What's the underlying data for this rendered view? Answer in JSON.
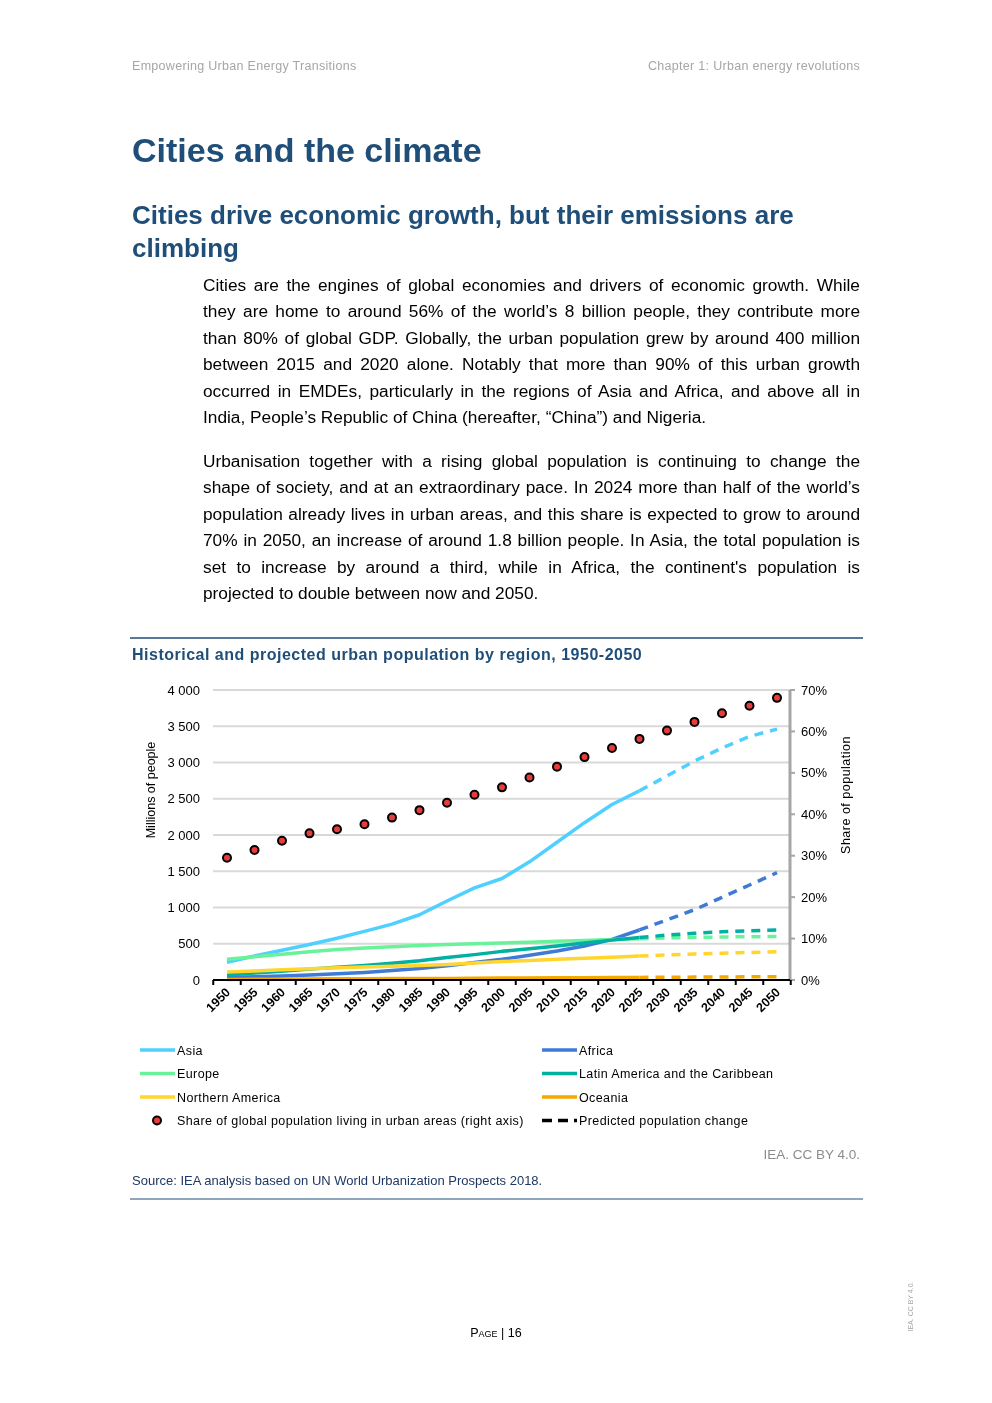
{
  "chart_data": {
    "type": "line",
    "title": "Historical and projected urban population by region, 1950-2050",
    "ylabel": "Millions of people",
    "y2label": "Share of population",
    "categories": [
      "1950",
      "1955",
      "1960",
      "1965",
      "1970",
      "1975",
      "1980",
      "1985",
      "1990",
      "1995",
      "2000",
      "2005",
      "2010",
      "2015",
      "2020",
      "2025",
      "2030",
      "2035",
      "2040",
      "2045",
      "2050"
    ],
    "series": [
      {
        "name": "Asia",
        "color": "#4fd0ff",
        "values": [
          245,
          330,
          410,
          490,
          575,
          670,
          770,
          900,
          1090,
          1270,
          1400,
          1630,
          1900,
          2170,
          2420,
          2610,
          null,
          null,
          null,
          null,
          null
        ]
      },
      {
        "name": "Africa",
        "color": "#3f7ad6",
        "values": [
          33,
          45,
          55,
          70,
          85,
          105,
          130,
          160,
          195,
          240,
          285,
          340,
          400,
          470,
          560,
          690,
          null,
          null,
          null,
          null,
          null
        ]
      },
      {
        "name": "Europe",
        "color": "#6af29a",
        "values": [
          285,
          320,
          355,
          390,
          420,
          440,
          460,
          475,
          490,
          500,
          510,
          520,
          535,
          545,
          560,
          570,
          null,
          null,
          null,
          null,
          null
        ]
      },
      {
        "name": "Latin America and the Caribbean",
        "color": "#00b0a0",
        "values": [
          70,
          95,
          120,
          150,
          175,
          200,
          230,
          265,
          310,
          350,
          395,
          430,
          470,
          510,
          550,
          585,
          null,
          null,
          null,
          null,
          null
        ]
      },
      {
        "name": "Northern America",
        "color": "#ffd52e",
        "values": [
          110,
          125,
          140,
          155,
          170,
          180,
          190,
          200,
          215,
          235,
          255,
          270,
          285,
          300,
          315,
          330,
          null,
          null,
          null,
          null,
          null
        ]
      },
      {
        "name": "Oceania",
        "color": "#f2a900",
        "values": [
          8,
          10,
          12,
          14,
          16,
          18,
          20,
          21,
          22,
          24,
          26,
          28,
          30,
          32,
          34,
          36,
          null,
          null,
          null,
          null,
          null
        ]
      },
      {
        "name": "Share of global population living in urban areas (right axis)",
        "type": "scatter",
        "axis": "y2",
        "marker": "circle",
        "color": "#e83c3c",
        "values": [
          29.5,
          31.4,
          33.6,
          35.4,
          36.4,
          37.6,
          39.2,
          41.0,
          42.8,
          44.7,
          46.5,
          48.9,
          51.5,
          53.8,
          56.0,
          58.2,
          60.2,
          62.3,
          64.4,
          66.2,
          68.1
        ]
      },
      {
        "color": "#4fd0ff",
        "line_style": "dashed",
        "values": [
          null,
          null,
          null,
          null,
          null,
          null,
          null,
          null,
          null,
          null,
          null,
          null,
          null,
          null,
          null,
          2610,
          2815,
          3020,
          3200,
          3360,
          3460
        ]
      },
      {
        "color": "#3f7ad6",
        "line_style": "dashed",
        "values": [
          null,
          null,
          null,
          null,
          null,
          null,
          null,
          null,
          null,
          null,
          null,
          null,
          null,
          null,
          null,
          690,
          830,
          970,
          1140,
          1310,
          1480
        ]
      },
      {
        "color": "#6af29a",
        "line_style": "dashed",
        "values": [
          null,
          null,
          null,
          null,
          null,
          null,
          null,
          null,
          null,
          null,
          null,
          null,
          null,
          null,
          null,
          570,
          580,
          588,
          593,
          597,
          600
        ]
      },
      {
        "color": "#00b0a0",
        "line_style": "dashed",
        "values": [
          null,
          null,
          null,
          null,
          null,
          null,
          null,
          null,
          null,
          null,
          null,
          null,
          null,
          null,
          null,
          585,
          620,
          645,
          665,
          680,
          690
        ]
      },
      {
        "color": "#ffd52e",
        "line_style": "dashed",
        "values": [
          null,
          null,
          null,
          null,
          null,
          null,
          null,
          null,
          null,
          null,
          null,
          null,
          null,
          null,
          null,
          330,
          345,
          360,
          370,
          380,
          390
        ]
      },
      {
        "color": "#f2a900",
        "line_style": "dashed",
        "values": [
          null,
          null,
          null,
          null,
          null,
          null,
          null,
          null,
          null,
          null,
          null,
          null,
          null,
          null,
          null,
          36,
          38,
          40,
          42,
          44,
          46
        ]
      }
    ],
    "ylim": [
      0,
      4000
    ],
    "yticks": [
      0,
      500,
      {
        "value": 1000,
        "label": "1 000"
      },
      {
        "value": 1500,
        "label": "1 500"
      },
      {
        "value": 2000,
        "label": "2 000"
      },
      {
        "value": 2500,
        "label": "2 500"
      },
      {
        "value": 3000,
        "label": "3 000"
      },
      {
        "value": 3500,
        "label": "3 500"
      },
      {
        "value": 4000,
        "label": "4 000"
      }
    ],
    "y2lim": [
      0,
      70
    ],
    "y2ticks": [
      {
        "value": 0,
        "label": "0%"
      },
      {
        "value": 10,
        "label": "10%"
      },
      {
        "value": 20,
        "label": "20%"
      },
      {
        "value": 30,
        "label": "30%"
      },
      {
        "value": 40,
        "label": "40%"
      },
      {
        "value": 50,
        "label": "50%"
      },
      {
        "value": 60,
        "label": "60%"
      },
      {
        "value": 70,
        "label": "70%"
      }
    ],
    "grid": "y",
    "legend": "bottom",
    "annotations": [
      "Empowering Urban Energy Transitions",
      "Chapter 1: Urban energy revolutions",
      "Cities and the climate",
      "Cities drive economic growth, but their emissions are climbing",
      "Cities are the engines of global economies and drivers of economic growth. While they are home to around 56% of the world’s 8 billion people, they contribute more than 80% of global GDP. Globally, the urban population grew by around 400 million between 2015 and 2020 alone. Notably that more than 90% of this urban growth occurred in EMDEs, particularly in the regions of Asia and Africa, and above all in India, People’s Republic of China (hereafter, “China”) and Nigeria.",
      "Urbanisation together with a rising global population is continuing to change the shape of society, and at an extraordinary pace. In 2024 more than half of the world’s population already lives in urban areas, and this share is expected to grow to around 70% in 2050, an increase of around 1.8 billion people. In Asia, the total population is set to increase by around a third, while in Africa, the continent's population is projected to double between now and 2050.",
      "Predicted population change",
      "IEA. CC BY 4.0.",
      "Source: IEA analysis based on UN World Urbanization Prospects 2018.",
      "Page | 16",
      "IEA. CC BY 4.0."
    ]
  }
}
